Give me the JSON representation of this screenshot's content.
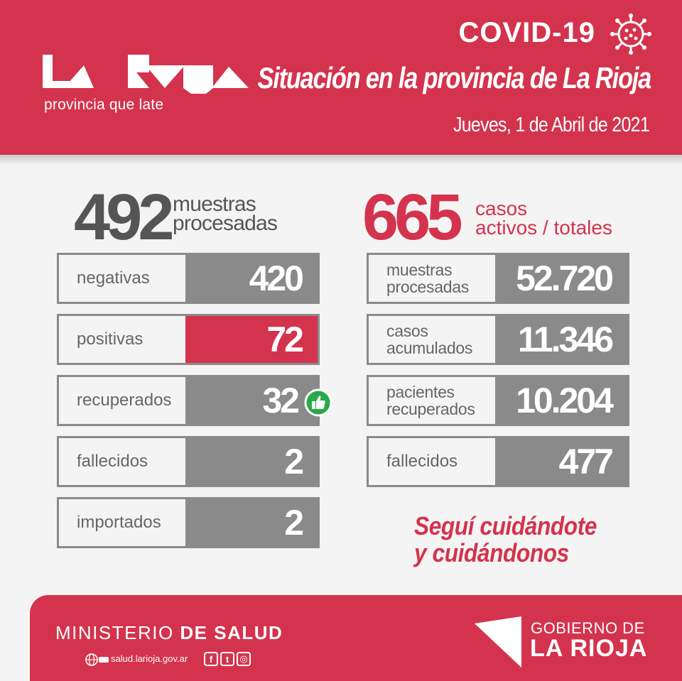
{
  "header": {
    "logo_tagline": "provincia que late",
    "covid_title": "COVID-19",
    "situacion": "Situación en la provincia de La Rioja",
    "fecha": "Jueves, 1 de Abril de 2021",
    "virus_icon": "virus-icon"
  },
  "left": {
    "big_number": "492",
    "big_label_line1": "muestras",
    "big_label_line2": "procesadas",
    "rows": [
      {
        "label": "negativas",
        "value": "420"
      },
      {
        "label": "positivas",
        "value": "72"
      },
      {
        "label": "recuperados",
        "value": "32"
      },
      {
        "label": "fallecidos",
        "value": "2"
      },
      {
        "label": "importados",
        "value": "2"
      }
    ]
  },
  "right": {
    "big_number": "665",
    "big_label_line1": "casos",
    "big_label_line2": "activos / totales",
    "rows": [
      {
        "label_line1": "muestras",
        "label_line2": "procesadas",
        "value": "52.720"
      },
      {
        "label_line1": "casos",
        "label_line2": "acumulados",
        "value": "11.346"
      },
      {
        "label_line1": "pacientes",
        "label_line2": "recuperados",
        "value": "10.204"
      },
      {
        "label_line1": "fallecidos",
        "label_line2": "",
        "value": "477"
      }
    ]
  },
  "slogan": {
    "line1": "Seguí cuidándote",
    "line2": "y cuidándonos"
  },
  "footer": {
    "ministerio_light": "MINISTERIO",
    "ministerio_bold": "DE SALUD",
    "web": "salud.larioja.gov.ar",
    "social_facebook": "f",
    "social_twitter": "t",
    "social_instagram": "◎",
    "gobierno_top": "GOBIERNO DE",
    "gobierno_bottom": "LA RIOJA"
  },
  "colors": {
    "brand_red": "#d4334d",
    "gray": "#8a8a8a",
    "thumb_green": "#2aa84a"
  }
}
